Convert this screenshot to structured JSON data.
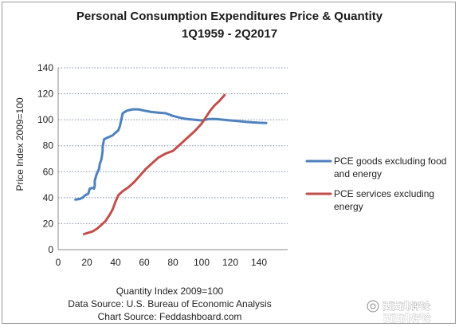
{
  "chart_data": {
    "type": "line",
    "title": "Personal Consumption Expenditures Price & Quantity",
    "subtitle": "1Q1959 - 2Q2017",
    "xlabel": "Quantity Index 2009=100",
    "ylabel": "Price Index 2009=100",
    "xlim": [
      0,
      160
    ],
    "ylim": [
      0,
      140
    ],
    "x_ticks": [
      "0",
      "20",
      "40",
      "60",
      "80",
      "100",
      "120",
      "140"
    ],
    "y_ticks": [
      "0",
      "20",
      "40",
      "60",
      "80",
      "100",
      "120",
      "140"
    ],
    "grid": "horizontal-dotted",
    "legend_position": "right",
    "series": [
      {
        "name": "PCE goods excluding food and energy",
        "color": "#4f81bd",
        "points": [
          [
            12,
            38.5
          ],
          [
            15,
            39
          ],
          [
            17,
            40
          ],
          [
            19,
            42
          ],
          [
            21,
            43
          ],
          [
            22,
            47
          ],
          [
            24,
            47.5
          ],
          [
            25,
            47
          ],
          [
            25.5,
            49
          ],
          [
            25.5,
            53
          ],
          [
            26.5,
            57
          ],
          [
            27.5,
            60
          ],
          [
            28.5,
            62
          ],
          [
            29,
            66
          ],
          [
            30,
            69
          ],
          [
            30.5,
            72
          ],
          [
            31,
            76
          ],
          [
            31,
            79
          ],
          [
            31.5,
            82
          ],
          [
            32,
            85
          ],
          [
            34,
            86
          ],
          [
            36,
            87
          ],
          [
            38,
            88
          ],
          [
            40,
            90
          ],
          [
            42,
            92
          ],
          [
            43,
            95
          ],
          [
            44,
            100
          ],
          [
            45,
            105
          ],
          [
            48,
            107
          ],
          [
            52,
            108
          ],
          [
            56,
            108
          ],
          [
            60,
            107
          ],
          [
            65,
            106
          ],
          [
            70,
            105.5
          ],
          [
            75,
            105
          ],
          [
            80,
            103
          ],
          [
            85,
            101.5
          ],
          [
            90,
            100.5
          ],
          [
            95,
            100
          ],
          [
            100,
            99.5
          ],
          [
            105,
            100.5
          ],
          [
            110,
            100.5
          ],
          [
            115,
            100
          ],
          [
            120,
            99.5
          ],
          [
            125,
            99
          ],
          [
            130,
            98.5
          ],
          [
            135,
            98
          ],
          [
            140,
            97.7
          ],
          [
            145,
            97.5
          ]
        ]
      },
      {
        "name": "PCE services excluding energy",
        "color": "#c0504d",
        "points": [
          [
            18,
            12
          ],
          [
            21,
            13
          ],
          [
            24,
            14
          ],
          [
            27,
            16
          ],
          [
            30,
            19
          ],
          [
            33,
            22
          ],
          [
            36,
            27
          ],
          [
            38,
            31
          ],
          [
            40,
            37
          ],
          [
            42,
            42
          ],
          [
            45,
            45
          ],
          [
            49,
            48
          ],
          [
            53,
            52
          ],
          [
            57,
            57
          ],
          [
            61,
            62
          ],
          [
            65,
            66
          ],
          [
            70,
            71
          ],
          [
            75,
            74
          ],
          [
            80,
            76
          ],
          [
            85,
            81
          ],
          [
            90,
            86
          ],
          [
            95,
            91
          ],
          [
            100,
            97
          ],
          [
            103,
            102
          ],
          [
            106,
            107
          ],
          [
            109,
            111
          ],
          [
            112,
            114
          ],
          [
            116,
            119
          ]
        ]
      }
    ]
  },
  "legend": [
    {
      "line1": "PCE goods excluding food",
      "line2": "and energy",
      "color": "#4f81bd"
    },
    {
      "line1": "PCE services excluding",
      "line2": "energy",
      "color": "#c0504d"
    }
  ],
  "footer": {
    "source": "Data Source: U.S. Bureau of Economic Analysis",
    "chart_source": "Chart Source: Feddashboard.com"
  },
  "watermark": {
    "text1": "西西弗评论",
    "text2": "西西弗评论"
  }
}
